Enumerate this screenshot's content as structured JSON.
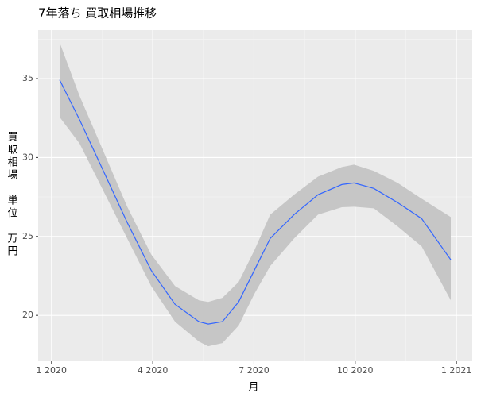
{
  "chart_data": {
    "type": "smooth",
    "title": "7年落ち 買取相場推移",
    "x_label": "月",
    "y_label": "買取相場　単位　万円",
    "x": [
      2020.02,
      2020.069,
      2020.128,
      2020.187,
      2020.246,
      2020.305,
      2020.364,
      2020.387,
      2020.422,
      2020.462,
      2020.501,
      2020.54,
      2020.599,
      2020.658,
      2020.717,
      2020.747,
      2020.796,
      2020.855,
      2020.914,
      2020.986
    ],
    "series": [
      {
        "color": "#3366ff",
        "band_color": "#c6c6c6",
        "values": [
          34.92,
          32.41,
          29.15,
          25.88,
          22.86,
          20.7,
          19.6,
          19.45,
          19.6,
          20.85,
          22.86,
          24.87,
          26.38,
          27.64,
          28.29,
          28.39,
          28.04,
          27.14,
          26.13,
          23.52
        ],
        "upper": [
          37.29,
          33.92,
          30.4,
          26.88,
          23.87,
          21.86,
          20.95,
          20.85,
          21.11,
          22.11,
          24.12,
          26.38,
          27.64,
          28.79,
          29.4,
          29.55,
          29.15,
          28.39,
          27.39,
          26.23
        ],
        "lower": [
          32.56,
          30.9,
          27.89,
          24.87,
          21.86,
          19.6,
          18.34,
          18.04,
          18.24,
          19.35,
          21.36,
          23.12,
          24.87,
          26.38,
          26.85,
          26.88,
          26.78,
          25.63,
          24.37,
          20.95
        ]
      }
    ],
    "xlim": [
      2019.967,
      2021.039
    ],
    "xticks": [
      {
        "value": 2020.0,
        "label": "1 2020"
      },
      {
        "value": 2020.25,
        "label": "4 2020"
      },
      {
        "value": 2020.5,
        "label": "7 2020"
      },
      {
        "value": 2020.75,
        "label": "10 2020"
      },
      {
        "value": 2021.0,
        "label": "1 2021"
      }
    ],
    "xminor": [
      2020.125,
      2020.375,
      2020.625,
      2020.875
    ],
    "ylim": [
      17.09,
      38.07
    ],
    "yticks": [
      20,
      25,
      30,
      35
    ],
    "yminor": [
      22.5,
      27.5,
      32.5,
      37.5
    ],
    "grid": true
  }
}
